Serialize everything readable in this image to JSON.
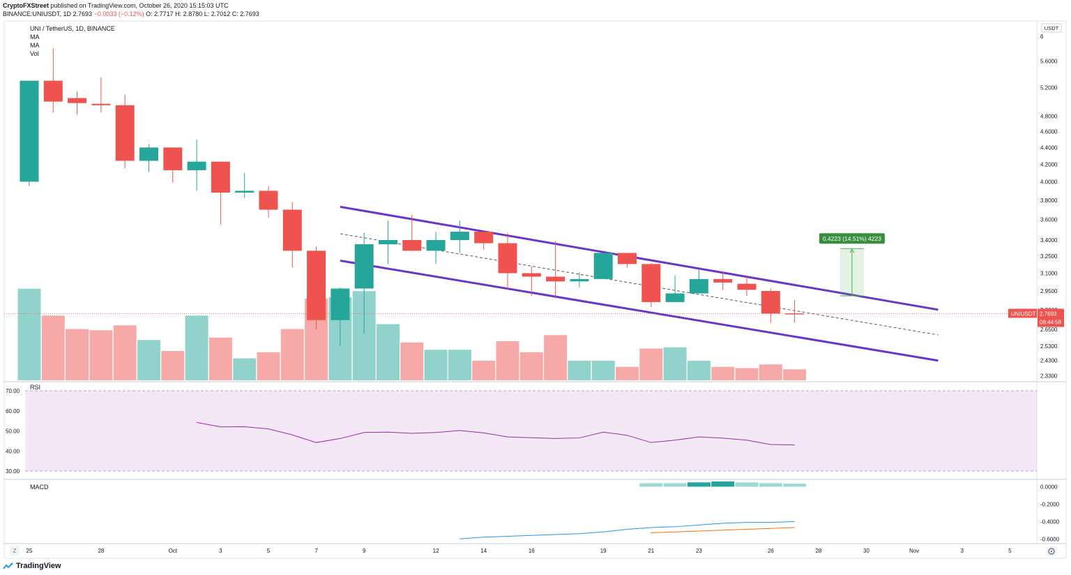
{
  "header": {
    "publisher": "CryptoFXStreet",
    "published_text": "published on TradingView.com, October 26, 2020 15:15:03 UTC",
    "symbol": "BINANCE:UNIUSDT, 1D",
    "price": "2.7693",
    "change": "−0.0033 (−0.12%)",
    "ohlc": "O: 2.7717  H: 2.8780  L: 2.7012  C: 2.7693"
  },
  "legend": {
    "title": "UNI / TetherUS, 1D, BINANCE",
    "items": [
      "MA",
      "MA",
      "Vol"
    ]
  },
  "footer": {
    "brand": "TradingView",
    "z_label": "Z",
    "settings_icon": "gear-icon"
  },
  "colors": {
    "up": "#26a69a",
    "down": "#ef5350",
    "channel": "#6a35c9",
    "rsi": "#9c27b0",
    "macd": "#2196f3",
    "signal": "#ff6d00"
  },
  "chart_data": [
    {
      "type": "candlestick",
      "title": "UNI / TetherUS, 1D, BINANCE",
      "y_axis": {
        "scale": "log",
        "unit": "USDT",
        "ticks": [
          "6",
          "5.6000",
          "5.2000",
          "4.8000",
          "4.6000",
          "4.4000",
          "4.2000",
          "4.0000",
          "3.8000",
          "3.6000",
          "3.4000",
          "3.2500",
          "3.1000",
          "2.9500",
          "2.8000",
          "2.6500",
          "2.5300",
          "2.4300",
          "2.3300"
        ]
      },
      "x_axis": {
        "ticks": [
          {
            "label": "25",
            "day": 0
          },
          {
            "label": "28",
            "day": 3
          },
          {
            "label": "Oct",
            "day": 6
          },
          {
            "label": "3",
            "day": 8
          },
          {
            "label": "5",
            "day": 10
          },
          {
            "label": "7",
            "day": 12
          },
          {
            "label": "9",
            "day": 14
          },
          {
            "label": "12",
            "day": 17
          },
          {
            "label": "14",
            "day": 19
          },
          {
            "label": "16",
            "day": 21
          },
          {
            "label": "19",
            "day": 24
          },
          {
            "label": "21",
            "day": 26
          },
          {
            "label": "23",
            "day": 28
          },
          {
            "label": "26",
            "day": 31
          },
          {
            "label": "28",
            "day": 33
          },
          {
            "label": "30",
            "day": 35
          },
          {
            "label": "Nov",
            "day": 37
          },
          {
            "label": "3",
            "day": 39
          },
          {
            "label": "5",
            "day": 41
          }
        ]
      },
      "candles": [
        {
          "day": 0,
          "o": 4.0,
          "h": 5.3,
          "l": 3.95,
          "c": 5.3
        },
        {
          "day": 1,
          "o": 5.3,
          "h": 5.8,
          "l": 4.85,
          "c": 5.0
        },
        {
          "day": 2,
          "o": 5.05,
          "h": 5.15,
          "l": 4.82,
          "c": 4.98
        },
        {
          "day": 3,
          "o": 4.97,
          "h": 5.35,
          "l": 4.85,
          "c": 4.95
        },
        {
          "day": 4,
          "o": 4.95,
          "h": 5.1,
          "l": 4.15,
          "c": 4.24
        },
        {
          "day": 5,
          "o": 4.24,
          "h": 4.44,
          "l": 4.11,
          "c": 4.4
        },
        {
          "day": 6,
          "o": 4.4,
          "h": 4.4,
          "l": 3.99,
          "c": 4.13
        },
        {
          "day": 7,
          "o": 4.13,
          "h": 4.5,
          "l": 3.9,
          "c": 4.23
        },
        {
          "day": 8,
          "o": 4.23,
          "h": 4.23,
          "l": 3.55,
          "c": 3.88
        },
        {
          "day": 9,
          "o": 3.88,
          "h": 4.1,
          "l": 3.82,
          "c": 3.9
        },
        {
          "day": 10,
          "o": 3.9,
          "h": 3.95,
          "l": 3.62,
          "c": 3.7
        },
        {
          "day": 11,
          "o": 3.7,
          "h": 3.78,
          "l": 3.15,
          "c": 3.3
        },
        {
          "day": 12,
          "o": 3.3,
          "h": 3.34,
          "l": 2.65,
          "c": 2.72
        },
        {
          "day": 13,
          "o": 2.72,
          "h": 2.98,
          "l": 2.53,
          "c": 2.97
        },
        {
          "day": 14,
          "o": 2.97,
          "h": 3.47,
          "l": 2.62,
          "c": 3.36
        },
        {
          "day": 15,
          "o": 3.36,
          "h": 3.59,
          "l": 3.18,
          "c": 3.4
        },
        {
          "day": 16,
          "o": 3.4,
          "h": 3.65,
          "l": 3.3,
          "c": 3.3
        },
        {
          "day": 17,
          "o": 3.3,
          "h": 3.48,
          "l": 3.18,
          "c": 3.4
        },
        {
          "day": 18,
          "o": 3.4,
          "h": 3.59,
          "l": 3.28,
          "c": 3.48
        },
        {
          "day": 19,
          "o": 3.48,
          "h": 3.48,
          "l": 3.31,
          "c": 3.37
        },
        {
          "day": 20,
          "o": 3.37,
          "h": 3.47,
          "l": 2.96,
          "c": 3.1
        },
        {
          "day": 21,
          "o": 3.1,
          "h": 3.16,
          "l": 2.91,
          "c": 3.07
        },
        {
          "day": 22,
          "o": 3.07,
          "h": 3.39,
          "l": 2.89,
          "c": 3.03
        },
        {
          "day": 23,
          "o": 3.03,
          "h": 3.11,
          "l": 2.98,
          "c": 3.05
        },
        {
          "day": 24,
          "o": 3.05,
          "h": 3.28,
          "l": 3.05,
          "c": 3.28
        },
        {
          "day": 25,
          "o": 3.28,
          "h": 3.28,
          "l": 3.15,
          "c": 3.18
        },
        {
          "day": 26,
          "o": 3.18,
          "h": 3.19,
          "l": 2.82,
          "c": 2.86
        },
        {
          "day": 27,
          "o": 2.86,
          "h": 3.08,
          "l": 2.86,
          "c": 2.93
        },
        {
          "day": 28,
          "o": 2.93,
          "h": 3.13,
          "l": 2.93,
          "c": 3.05
        },
        {
          "day": 29,
          "o": 3.05,
          "h": 3.11,
          "l": 2.96,
          "c": 3.02
        },
        {
          "day": 30,
          "o": 3.01,
          "h": 3.07,
          "l": 2.91,
          "c": 2.96
        },
        {
          "day": 31,
          "o": 2.95,
          "h": 2.97,
          "l": 2.7,
          "c": 2.77
        },
        {
          "day": 32,
          "o": 2.7717,
          "h": 2.878,
          "l": 2.7012,
          "c": 2.7693
        }
      ],
      "volume_relative": [
        0.75,
        0.53,
        0.42,
        0.41,
        0.45,
        0.33,
        0.24,
        0.53,
        0.35,
        0.18,
        0.23,
        0.42,
        0.67,
        0.68,
        0.73,
        0.46,
        0.31,
        0.25,
        0.25,
        0.16,
        0.32,
        0.23,
        0.37,
        0.16,
        0.16,
        0.11,
        0.26,
        0.27,
        0.16,
        0.11,
        0.1,
        0.13,
        0.09
      ],
      "current_price": {
        "label": "UNIUSDT",
        "value": "2.7693",
        "countdown": "08:44:58"
      },
      "channel_upper": [
        {
          "day": 13,
          "price": 3.73
        },
        {
          "day": 38,
          "price": 2.8
        }
      ],
      "channel_lower": [
        {
          "day": 13,
          "price": 3.21
        },
        {
          "day": 38,
          "price": 2.43
        }
      ],
      "channel_mid": [
        {
          "day": 13,
          "price": 3.46
        },
        {
          "day": 38,
          "price": 2.61
        }
      ],
      "measure_box": {
        "label": "0.4223 (14.51%) 4223",
        "day_start": 33.9,
        "day_end": 34.9,
        "price_low": 2.91,
        "price_high": 3.32
      }
    },
    {
      "type": "line",
      "title": "RSI",
      "y_ticks": [
        "70.00",
        "60.00",
        "50.00",
        "40.00",
        "30.00"
      ],
      "ylim": [
        30,
        70
      ],
      "days": [
        7,
        8,
        9,
        10,
        11,
        12,
        13,
        14,
        15,
        16,
        17,
        18,
        19,
        20,
        21,
        22,
        23,
        24,
        25,
        26,
        27,
        28,
        29,
        30,
        31,
        32
      ],
      "values": [
        54.2,
        52.0,
        52.1,
        51.0,
        48.0,
        44.2,
        46.2,
        49.2,
        49.4,
        48.8,
        49.2,
        50.2,
        49.0,
        47.0,
        46.6,
        46.2,
        46.5,
        49.4,
        47.8,
        44.2,
        45.4,
        47.0,
        46.4,
        45.4,
        43.2,
        43.0
      ]
    },
    {
      "type": "macd",
      "title": "MACD",
      "y_ticks": [
        "0.0000",
        "-0.2000",
        "-0.4000",
        "-0.6000"
      ],
      "ylim": [
        -0.63,
        0.06
      ],
      "macd_days": [
        18,
        19,
        20,
        21,
        22,
        23,
        24,
        25,
        26,
        27,
        28,
        29,
        30,
        31,
        32
      ],
      "macd_values": [
        -0.6,
        -0.58,
        -0.57,
        -0.56,
        -0.55,
        -0.54,
        -0.52,
        -0.49,
        -0.47,
        -0.46,
        -0.44,
        -0.42,
        -0.41,
        -0.41,
        -0.4
      ],
      "signal_days": [
        26,
        27,
        28,
        29,
        30,
        31,
        32
      ],
      "signal_values": [
        -0.53,
        -0.52,
        -0.51,
        -0.5,
        -0.49,
        -0.48,
        -0.47
      ],
      "hist_days": [
        26,
        27,
        28,
        29,
        30,
        31,
        32
      ],
      "hist_values": [
        0.04,
        0.04,
        0.05,
        0.06,
        0.05,
        0.04,
        0.035
      ],
      "hist_dark": [
        false,
        false,
        true,
        true,
        false,
        false,
        false
      ]
    }
  ]
}
